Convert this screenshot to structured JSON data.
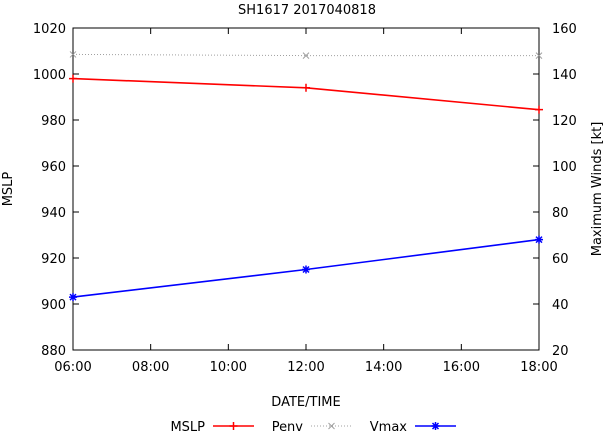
{
  "chart_data": {
    "type": "line",
    "title": "SH1617 2017040818",
    "xlabel": "DATE/TIME",
    "ylabel": "MSLP",
    "y2label": "Maximum Winds [kt]",
    "x_ticks": [
      "06:00",
      "08:00",
      "10:00",
      "12:00",
      "14:00",
      "16:00",
      "18:00"
    ],
    "x_tick_hours": [
      6,
      8,
      10,
      12,
      14,
      16,
      18
    ],
    "xlim": [
      6,
      18
    ],
    "ylim": [
      880,
      1020
    ],
    "y_ticks": [
      880,
      900,
      920,
      940,
      960,
      980,
      1000,
      1020
    ],
    "y2lim": [
      20,
      160
    ],
    "y2_ticks": [
      20,
      40,
      60,
      80,
      100,
      120,
      140,
      160
    ],
    "grid": false,
    "legend_position": "bottom",
    "series": [
      {
        "name": "MSLP",
        "axis": "left",
        "color": "#ff0000",
        "marker": "plus",
        "dash": "",
        "x": [
          6,
          12,
          18
        ],
        "values": [
          998,
          994,
          984.5
        ]
      },
      {
        "name": "Penv",
        "axis": "left",
        "color": "#a0a0a0",
        "marker": "cross",
        "dash": "1,2",
        "x": [
          6,
          12,
          18
        ],
        "values": [
          1008.5,
          1008,
          1008
        ]
      },
      {
        "name": "Vmax",
        "axis": "right",
        "color": "#0000ff",
        "marker": "star",
        "dash": "",
        "x": [
          6,
          12,
          18
        ],
        "values": [
          43,
          55,
          68
        ]
      }
    ]
  }
}
